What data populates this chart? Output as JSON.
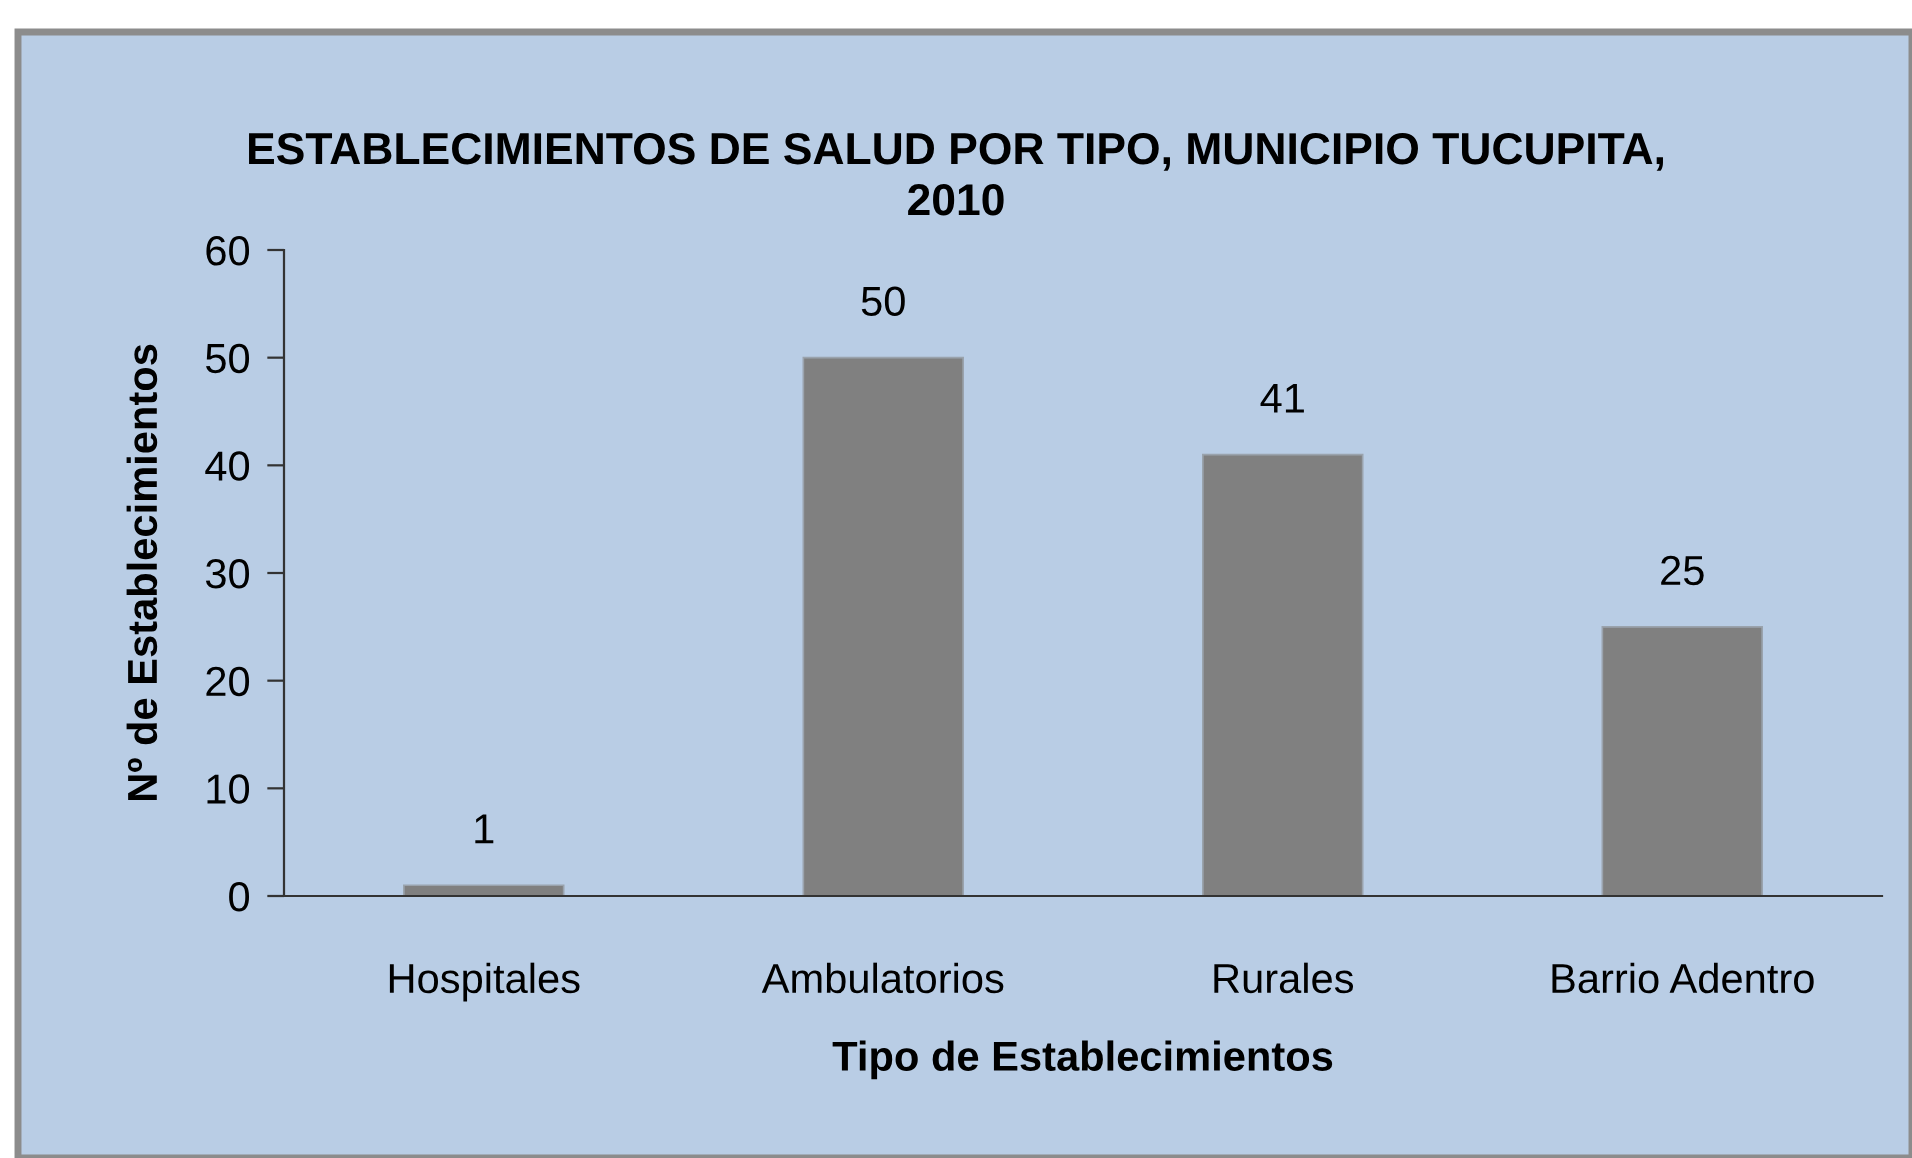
{
  "chart_data": {
    "type": "bar",
    "title": "ESTABLECIMIENTOS DE SALUD POR TIPO, MUNICIPIO TUCUPITA,\n2010",
    "xlabel": "Tipo de Establecimientos",
    "ylabel": "Nº de Establecimientos",
    "categories": [
      "Hospitales",
      "Ambulatorios",
      "Rurales",
      "Barrio Adentro"
    ],
    "values": [
      1,
      50,
      41,
      25
    ],
    "color": "#808080",
    "ylim": [
      0,
      60
    ],
    "yticks": [
      0,
      10,
      20,
      30,
      40,
      50,
      60
    ],
    "data_labels": true
  }
}
